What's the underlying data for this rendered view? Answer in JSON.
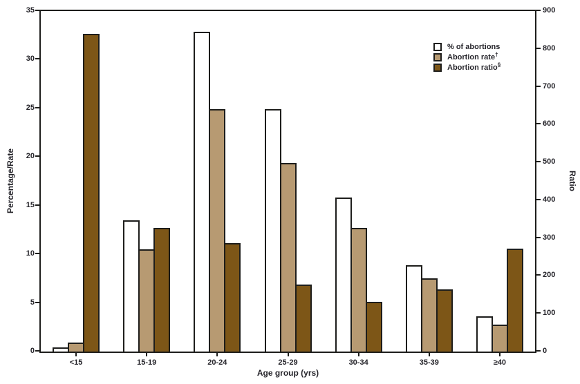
{
  "chart_data": {
    "type": "bar",
    "title": "",
    "categories": [
      "<15",
      "15-19",
      "20-24",
      "25-29",
      "30-34",
      "35-39",
      "≥40"
    ],
    "series": [
      {
        "key": "percent",
        "name": "% of abortions",
        "axis": "left",
        "color": "#ffffff",
        "values": [
          0.4,
          13.5,
          32.9,
          24.9,
          15.8,
          8.9,
          3.6
        ]
      },
      {
        "key": "rate",
        "name": "Abortion rate†",
        "axis": "left",
        "color": "#b79a72",
        "values": [
          0.9,
          10.5,
          24.9,
          19.4,
          12.7,
          7.5,
          2.8
        ]
      },
      {
        "key": "ratio",
        "name": "Abortion ratio§",
        "axis": "right",
        "color": "#7d5617",
        "values": [
          840,
          327,
          286,
          177,
          132,
          164,
          272
        ]
      }
    ],
    "xlabel": "Age group (yrs)",
    "ylabel_left": "Percentage/Rate",
    "ylabel_right": "Ratio",
    "ylim_left": [
      0,
      35
    ],
    "ylim_right": [
      0,
      900
    ],
    "left_ticks": [
      0,
      5,
      10,
      15,
      20,
      25,
      30,
      35
    ],
    "right_ticks": [
      0,
      100,
      200,
      300,
      400,
      500,
      600,
      700,
      800,
      900
    ],
    "grid": false,
    "legend_position": "inside-upper-right",
    "colors": {
      "axis": "#1d1d1b",
      "text": "#26252b",
      "bar_outline": "#1d1d1b"
    }
  },
  "legend": {
    "items": [
      {
        "label": "% of abortions",
        "sup": "",
        "color": "#ffffff"
      },
      {
        "label": "Abortion rate",
        "sup": "†",
        "color": "#b79a72"
      },
      {
        "label": "Abortion ratio",
        "sup": "§",
        "color": "#7d5617"
      }
    ]
  }
}
